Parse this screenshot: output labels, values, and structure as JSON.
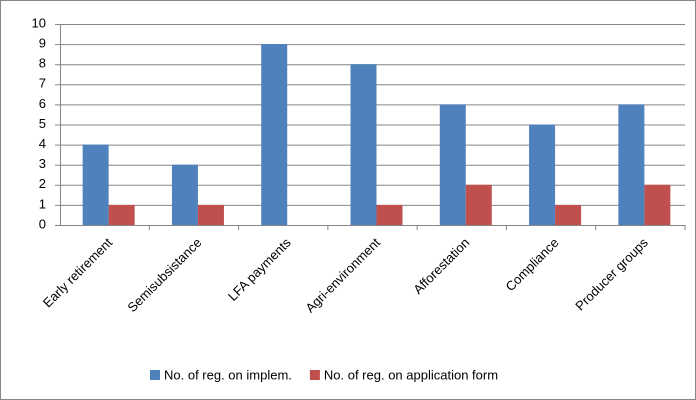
{
  "chart_data": {
    "type": "bar",
    "categories": [
      "Early retirement",
      "Semisubsistance",
      "LFA payments",
      "Agri-environment",
      "Afforestation",
      "Compliance",
      "Producer groups"
    ],
    "series": [
      {
        "name": "No. of reg. on implem.",
        "color": "#4f81bd",
        "values": [
          4,
          3,
          9,
          8,
          6,
          5,
          6
        ]
      },
      {
        "name": "No. of reg. on application form",
        "color": "#c0504d",
        "values": [
          1,
          1,
          0,
          1,
          2,
          1,
          2
        ]
      }
    ],
    "ylim": [
      0,
      10
    ],
    "yticks": [
      0,
      1,
      2,
      3,
      4,
      5,
      6,
      7,
      8,
      9,
      10
    ],
    "grid": true,
    "legend": "bottom"
  }
}
